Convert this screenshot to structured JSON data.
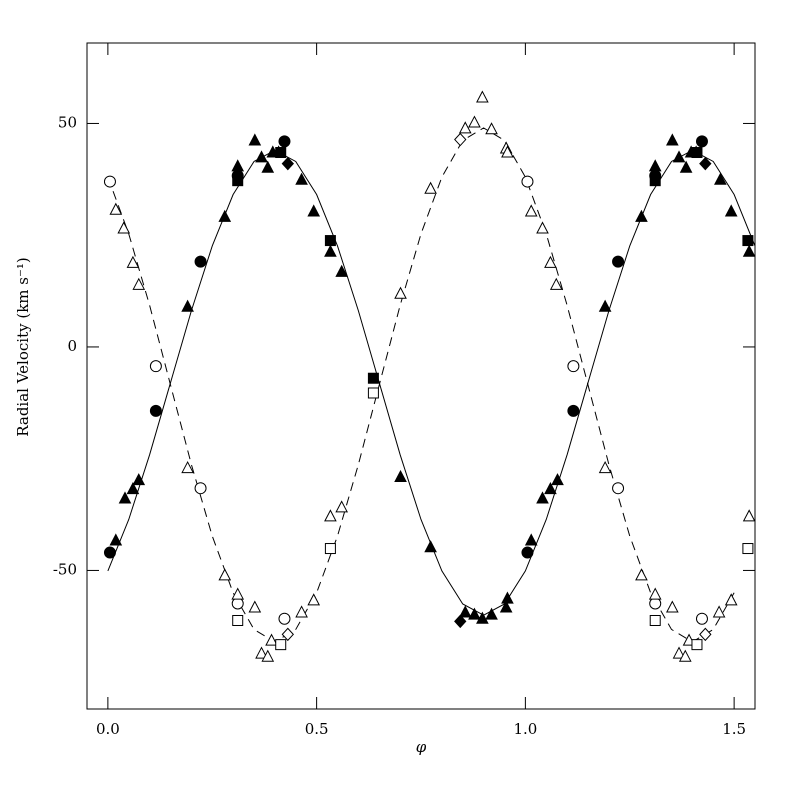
{
  "chart_data": {
    "type": "scatter",
    "x_label": "φ",
    "y_label": "Radial Velocity (km s⁻¹)",
    "xlim": [
      -0.05,
      1.55
    ],
    "ylim": [
      -81,
      68
    ],
    "xticks": [
      {
        "value": 0,
        "label": "0.0"
      },
      {
        "value": 0.5,
        "label": "0.5"
      },
      {
        "value": 1,
        "label": "1.0"
      },
      {
        "value": 1.5,
        "label": "1.5"
      }
    ],
    "yticks": [
      -50,
      0,
      50
    ],
    "color": "#000000",
    "series": [
      {
        "marker": "circle",
        "filled": true,
        "x": [
          0.005,
          0.115,
          0.222,
          0.311,
          0.423,
          1.005,
          1.115,
          1.222,
          1.311,
          1.423
        ],
        "values": [
          -46,
          -14.3,
          19.1,
          38.3,
          46,
          -46,
          -14.3,
          19.1,
          38.3,
          46
        ]
      },
      {
        "marker": "triangle",
        "filled": true,
        "x": [
          0.019,
          0.041,
          0.06,
          0.074,
          0.191,
          0.28,
          0.311,
          0.352,
          0.368,
          0.383,
          0.395,
          0.409,
          0.464,
          0.493,
          0.533,
          0.56,
          0.701,
          0.773,
          0.856,
          0.878,
          0.897,
          0.919,
          0.954,
          0.957,
          1.014,
          1.041,
          1.06,
          1.077,
          1.191,
          1.278,
          1.311,
          1.352,
          1.368,
          1.385,
          1.397,
          1.409,
          1.467,
          1.493,
          1.536
        ],
        "values": [
          -43.3,
          -33.9,
          -31.8,
          -29.8,
          9,
          29.1,
          40.4,
          46.2,
          42.4,
          40.1,
          43.5,
          43.5,
          37.4,
          30.3,
          21.3,
          16.8,
          -29.1,
          -44.8,
          -59.4,
          -59.9,
          -60.8,
          -59.9,
          -58.3,
          -56.3,
          -43.3,
          -33.9,
          -31.8,
          -29.8,
          9,
          29.1,
          40.4,
          46.2,
          42.4,
          40.1,
          43.5,
          43.5,
          37.4,
          30.3,
          21.3
        ]
      },
      {
        "marker": "square",
        "filled": true,
        "x": [
          0.311,
          0.414,
          0.533,
          0.636,
          1.311,
          1.411,
          1.533
        ],
        "values": [
          37.2,
          43.5,
          23.8,
          -7,
          37.2,
          43.5,
          23.8
        ]
      },
      {
        "marker": "diamond",
        "filled": true,
        "x": [
          0.431,
          0.844,
          1.431
        ],
        "values": [
          41,
          -61.4,
          41
        ]
      },
      {
        "marker": "circle",
        "filled": false,
        "x": [
          0.005,
          0.115,
          0.222,
          0.311,
          0.423,
          1.005,
          1.115,
          1.222,
          1.311,
          1.423
        ],
        "values": [
          37,
          -4.3,
          -31.6,
          -57.4,
          -60.8,
          37,
          -4.3,
          -31.6,
          -57.4,
          -60.8
        ]
      },
      {
        "marker": "triangle",
        "filled": false,
        "x": [
          0.019,
          0.038,
          0.06,
          0.074,
          0.191,
          0.28,
          0.311,
          0.352,
          0.368,
          0.383,
          0.392,
          0.464,
          0.493,
          0.533,
          0.56,
          0.701,
          0.773,
          0.856,
          0.878,
          0.897,
          0.919,
          0.954,
          0.957,
          1.014,
          1.041,
          1.06,
          1.074,
          1.191,
          1.278,
          1.311,
          1.352,
          1.368,
          1.383,
          1.392,
          1.464,
          1.493,
          1.536
        ],
        "values": [
          30.7,
          26.5,
          18.8,
          13.9,
          -27.1,
          -51.1,
          -55.4,
          -58.3,
          -68.6,
          -69.3,
          -65.7,
          -59.4,
          -56.7,
          -37.9,
          -35.9,
          11.9,
          35.4,
          48.9,
          50.2,
          55.8,
          48.7,
          44.4,
          43.5,
          30.3,
          26.5,
          18.8,
          13.9,
          -27.1,
          -51.1,
          -55.4,
          -58.3,
          -68.6,
          -69.3,
          -65.7,
          -59.4,
          -56.7,
          -37.9
        ]
      },
      {
        "marker": "square",
        "filled": false,
        "x": [
          0.311,
          0.414,
          0.533,
          0.636,
          1.311,
          1.411,
          1.533
        ],
        "values": [
          -61.2,
          -66.6,
          -45.1,
          -10.3,
          -61.2,
          -66.6,
          -45.1
        ]
      },
      {
        "marker": "diamond",
        "filled": false,
        "x": [
          0.431,
          0.844,
          1.431
        ],
        "values": [
          -64.3,
          46.4,
          -64.3
        ]
      }
    ],
    "curves": [
      {
        "style": "solid",
        "x": [
          0,
          0.05,
          0.1,
          0.15,
          0.2,
          0.25,
          0.3,
          0.35,
          0.4,
          0.45,
          0.5,
          0.55,
          0.6,
          0.65,
          0.7,
          0.75,
          0.8,
          0.85,
          0.9,
          0.95,
          1,
          1.05,
          1.1,
          1.15,
          1.2,
          1.25,
          1.3,
          1.35,
          1.4,
          1.45,
          1.5,
          1.55
        ],
        "values": [
          -50.1,
          -38.6,
          -24.1,
          -8,
          8.1,
          22.6,
          34.1,
          41.5,
          44,
          41.5,
          34.1,
          22.6,
          8.1,
          -8,
          -24.1,
          -38.6,
          -50.1,
          -57.5,
          -60,
          -57.5,
          -50.1,
          -38.6,
          -24.1,
          -8,
          8.1,
          22.6,
          34.1,
          41.5,
          44,
          41.5,
          34.1,
          22.6
        ]
      },
      {
        "style": "dashed",
        "x": [
          0,
          0.05,
          0.1,
          0.15,
          0.2,
          0.25,
          0.3,
          0.35,
          0.4,
          0.45,
          0.5,
          0.55,
          0.6,
          0.65,
          0.7,
          0.75,
          0.8,
          0.85,
          0.9,
          0.95,
          1,
          1.05,
          1.1,
          1.15,
          1.2,
          1.25,
          1.3,
          1.35,
          1.4,
          1.45,
          1.5
        ],
        "values": [
          38,
          25.3,
          9.3,
          -8.5,
          -26.3,
          -42.3,
          -55,
          -63.2,
          -66,
          -63.2,
          -55,
          -42.3,
          -26.3,
          -8.5,
          9.3,
          25.3,
          38,
          46.2,
          49,
          46.2,
          38,
          25.3,
          9.3,
          -8.5,
          -26.3,
          -42.3,
          -55,
          -63.2,
          -66,
          -63.2,
          -55
        ]
      }
    ]
  }
}
